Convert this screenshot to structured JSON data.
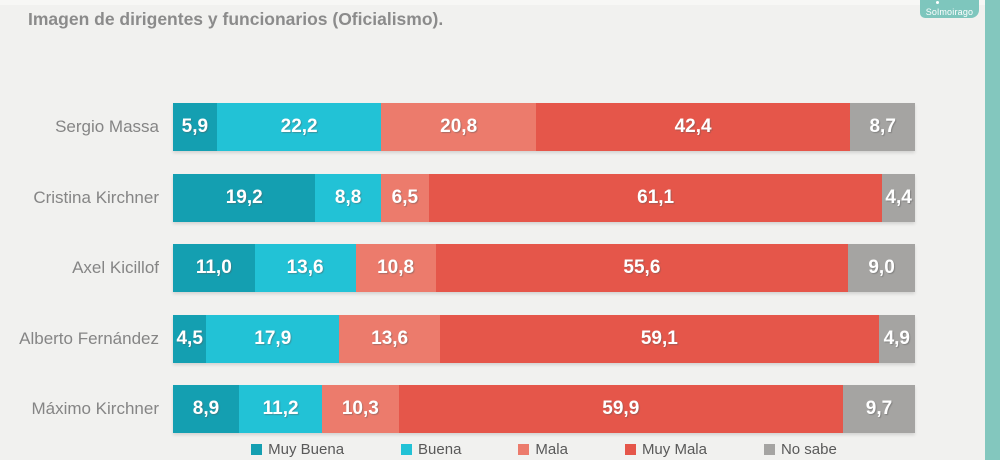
{
  "title": "Imagen de dirigentes y funcionarios (Oficialismo).",
  "brand": {
    "name": "Solmoirago"
  },
  "colors": {
    "background": "#f1f1ef",
    "accent_band": "#83c7be",
    "badge": "#7ec6bd",
    "title_text": "#8b8b8b",
    "row_label_text": "#858585",
    "legend_text": "#595959",
    "value_text": "#ffffff"
  },
  "chart_data": {
    "type": "bar",
    "stacked": true,
    "orientation": "horizontal",
    "title": "Imagen de dirigentes y funcionarios (Oficialismo).",
    "categories": [
      "Sergio Massa",
      "Cristina Kirchner",
      "Axel Kicillof",
      "Alberto Fernández",
      "Máximo Kirchner"
    ],
    "series": [
      {
        "name": "Muy Buena",
        "color": "#149fb1",
        "values": [
          5.9,
          19.2,
          11.0,
          4.5,
          8.9
        ]
      },
      {
        "name": "Buena",
        "color": "#22c2d6",
        "values": [
          22.2,
          8.8,
          13.6,
          17.9,
          11.2
        ]
      },
      {
        "name": "Mala",
        "color": "#ec7b6c",
        "values": [
          20.8,
          6.5,
          10.8,
          13.6,
          10.3
        ]
      },
      {
        "name": "Muy Mala",
        "color": "#e5564a",
        "values": [
          42.4,
          61.1,
          55.6,
          59.1,
          59.9
        ]
      },
      {
        "name": "No sabe",
        "color": "#a5a4a2",
        "values": [
          8.7,
          4.4,
          9.0,
          4.9,
          9.7
        ]
      }
    ],
    "xlim": [
      0,
      100
    ],
    "value_format": "comma-decimal-1",
    "legend_position": "bottom",
    "grid": false
  }
}
